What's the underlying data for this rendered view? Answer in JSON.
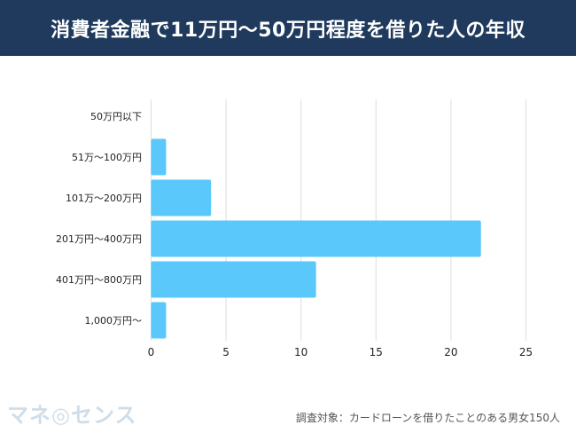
{
  "header": {
    "title": "消費者金融で11万円〜50万円程度を借りた人の年収"
  },
  "chart_data": {
    "type": "bar",
    "orientation": "horizontal",
    "title": "消費者金融で11万円〜50万円程度を借りた人の年収",
    "categories": [
      "50万円以下",
      "51万〜100万円",
      "101万〜200万円",
      "201万円〜400万円",
      "401万円〜800万円",
      "1,000万円〜"
    ],
    "values": [
      0,
      1,
      4,
      22,
      11,
      1
    ],
    "xlim": [
      0,
      25
    ],
    "xticks": [
      "0",
      "5",
      "10",
      "15",
      "20",
      "25"
    ],
    "grid": true,
    "bar_color": "#5ac8fa"
  },
  "footer": {
    "logo": "マネ◎センス",
    "note": "調査対象：カードローンを借りたことのある男女150人"
  }
}
